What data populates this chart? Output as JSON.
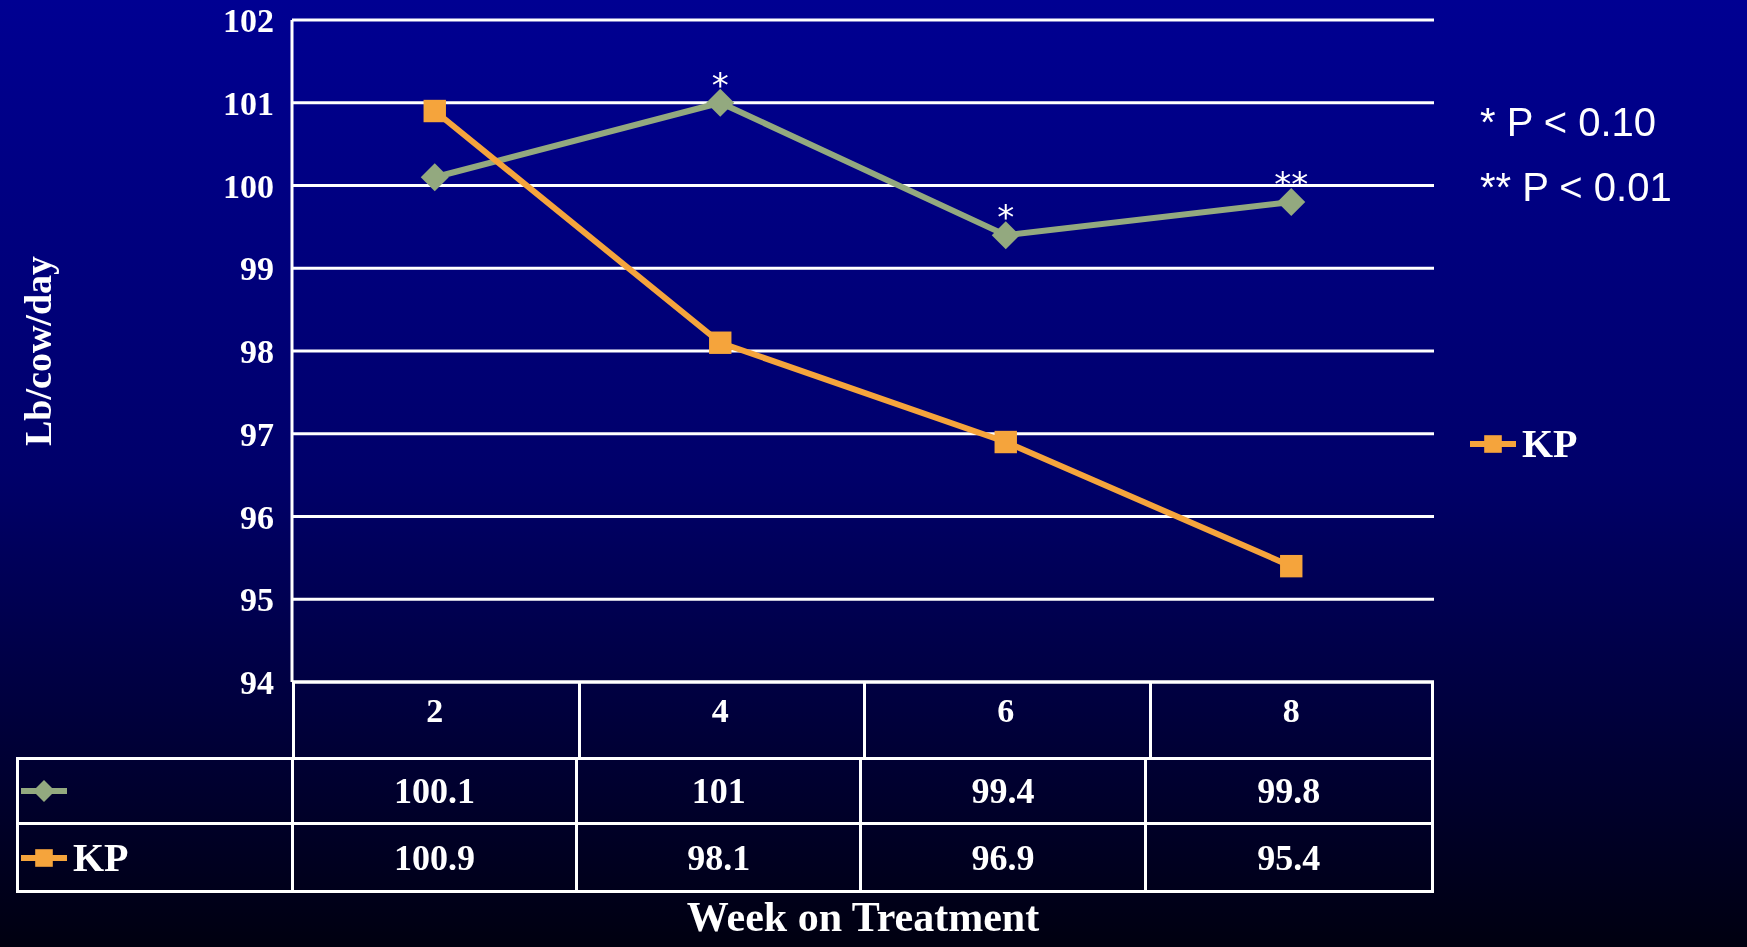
{
  "chart_data": {
    "type": "line",
    "xlabel": "Week on Treatment",
    "ylabel": "Lb/cow/day",
    "categories": [
      "2",
      "4",
      "6",
      "8"
    ],
    "series": [
      {
        "color": "#93a97f",
        "marker": "diamond",
        "values": [
          100.1,
          101,
          99.4,
          99.8
        ]
      },
      {
        "name": "KP",
        "color": "#f5a43c",
        "marker": "square",
        "values": [
          100.9,
          98.1,
          96.9,
          95.4
        ]
      }
    ],
    "ylim": [
      94,
      102
    ],
    "yticks": [
      94,
      95,
      96,
      97,
      98,
      99,
      100,
      101,
      102
    ],
    "grid": "y",
    "legend": "right",
    "data_labels": true,
    "annotations": [
      {
        "text": "*",
        "x": "4",
        "y": 101
      },
      {
        "text": "*",
        "x": "6",
        "y": 99.4
      },
      {
        "text": "**",
        "x": "8",
        "y": 99.8
      },
      "* P < 0.10",
      "** P < 0.01"
    ]
  }
}
